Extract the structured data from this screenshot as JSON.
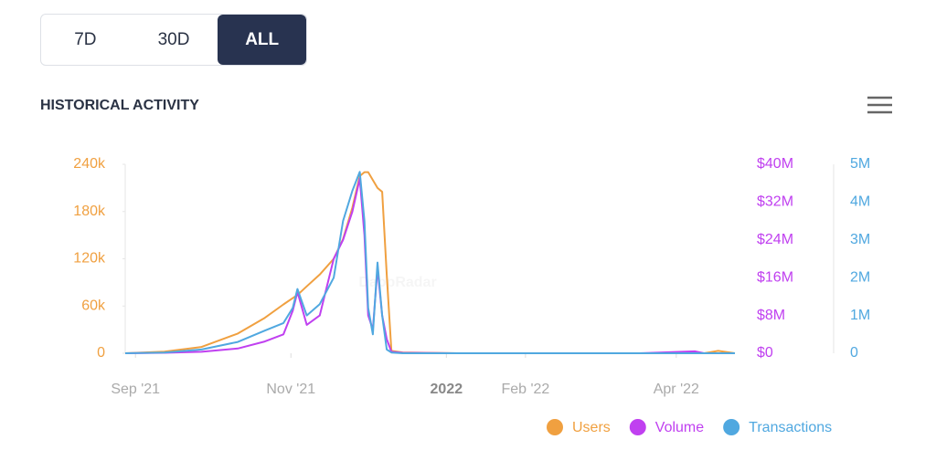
{
  "range_buttons": [
    "7D",
    "30D",
    "ALL"
  ],
  "chart_data": {
    "type": "line",
    "title": "HISTORICAL ACTIVITY",
    "watermark": "DappRadar",
    "x": [
      2021.655,
      2021.697,
      2021.737,
      2021.776,
      2021.805,
      2021.825,
      2021.835,
      2021.84,
      2021.85,
      2021.864,
      2021.879,
      2021.889,
      2021.899,
      2021.907,
      2021.912,
      2021.916,
      2021.921,
      2021.926,
      2021.931,
      2021.936,
      2021.941,
      2021.953,
      2022.012,
      2022.11,
      2022.208,
      2022.267,
      2022.277,
      2022.292,
      2022.31
    ],
    "xlim": [
      2021.655,
      2022.31
    ],
    "xticks": [
      {
        "value": 2021.666,
        "label": "Sep '21"
      },
      {
        "value": 2021.833,
        "label": "Nov '21"
      },
      2022,
      {
        "value": 2022.085,
        "label": "Feb '22"
      },
      {
        "value": 2022.247,
        "label": "Apr '22"
      }
    ],
    "ylim": [
      0,
      240000
    ],
    "yticks": [
      0,
      {
        "value": 60000,
        "label": "60k"
      },
      {
        "value": 120000,
        "label": "120k"
      },
      {
        "value": 180000,
        "label": "180k"
      },
      {
        "value": 240000,
        "label": "240k"
      }
    ],
    "y2lim": [
      0,
      40000000
    ],
    "y2ticks": [
      {
        "value": 0,
        "label": "$0"
      },
      {
        "value": 8000000,
        "label": "$8M"
      },
      {
        "value": 16000000,
        "label": "$16M"
      },
      {
        "value": 24000000,
        "label": "$24M"
      },
      {
        "value": 32000000,
        "label": "$32M"
      },
      {
        "value": 40000000,
        "label": "$40M"
      }
    ],
    "y3lim": [
      0,
      5000000
    ],
    "y3ticks": [
      0,
      {
        "value": 1000000,
        "label": "1M"
      },
      {
        "value": 2000000,
        "label": "2M"
      },
      {
        "value": 3000000,
        "label": "3M"
      },
      {
        "value": 4000000,
        "label": "4M"
      },
      {
        "value": 5000000,
        "label": "5M"
      }
    ],
    "series": [
      {
        "name": "Users",
        "color": "#f0a040",
        "axis": "y",
        "values": [
          0,
          2000,
          8000,
          25000,
          45000,
          62000,
          70000,
          74000,
          85000,
          100000,
          120000,
          145000,
          185000,
          225000,
          230000,
          230000,
          220000,
          210000,
          205000,
          100000,
          3000,
          1000,
          0,
          0,
          0,
          0,
          0,
          3000,
          0
        ]
      },
      {
        "name": "Volume",
        "color": "#c040f0",
        "axis": "y2",
        "values": [
          0,
          100000,
          300000,
          1000000,
          2500000,
          4000000,
          9000000,
          13000000,
          6000000,
          8000000,
          20000000,
          24000000,
          30000000,
          37000000,
          25000000,
          8000000,
          5000000,
          18000000,
          8000000,
          3000000,
          300000,
          100000,
          0,
          0,
          0,
          400000,
          0,
          0,
          0
        ]
      },
      {
        "name": "Transactions",
        "color": "#50a8e0",
        "axis": "y3",
        "values": [
          0,
          20000,
          100000,
          300000,
          600000,
          800000,
          1200000,
          1700000,
          1000000,
          1300000,
          2000000,
          3500000,
          4300000,
          4800000,
          3500000,
          1200000,
          500000,
          2400000,
          1000000,
          100000,
          20000,
          0,
          0,
          0,
          0,
          0,
          0,
          0,
          0
        ]
      }
    ]
  }
}
